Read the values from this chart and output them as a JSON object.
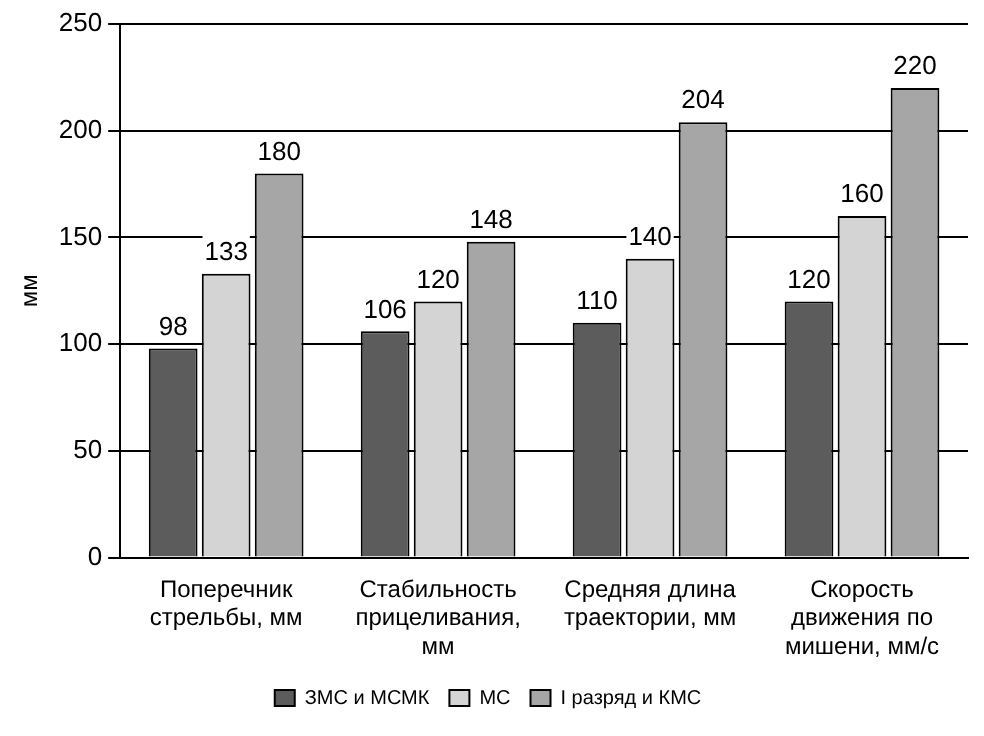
{
  "chart_data": {
    "type": "bar",
    "ylabel": "мм",
    "categories": [
      "Поперечник стрельбы, мм",
      "Стабильность прицеливания,  мм",
      "Средняя длина траектории, мм",
      "Скорость движения по мишени, мм/с"
    ],
    "series": [
      {
        "name": "ЗМС и МСМК",
        "color": "#5c5c5c",
        "values": [
          98,
          106,
          110,
          120
        ]
      },
      {
        "name": "МС",
        "color": "#d4d4d4",
        "values": [
          133,
          120,
          140,
          160
        ]
      },
      {
        "name": "I разряд и КМС",
        "color": "#a6a6a6",
        "values": [
          180,
          148,
          204,
          220
        ]
      }
    ],
    "ylim": [
      0,
      250
    ],
    "yticks": [
      0,
      50,
      100,
      150,
      200,
      250
    ],
    "grid": "y",
    "legend": "bottom",
    "data_labels": true
  }
}
